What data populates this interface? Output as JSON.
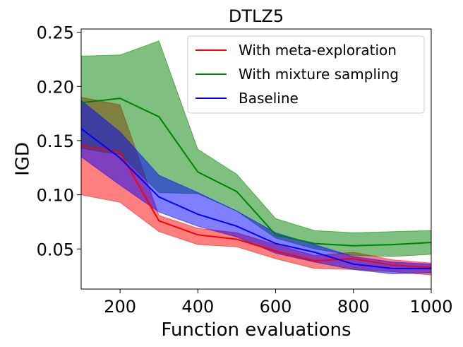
{
  "chart_data": {
    "type": "line",
    "title": "DTLZ5",
    "xlabel": "Function evaluations",
    "ylabel": "IGD",
    "xlim": [
      100,
      1000
    ],
    "ylim": [
      0.013,
      0.253
    ],
    "grid": false,
    "legend_position": "top-right",
    "xticks": [
      200,
      400,
      600,
      800,
      1000
    ],
    "xtick_labels": [
      "200",
      "400",
      "600",
      "800",
      "1000"
    ],
    "yticks": [
      0.05,
      0.1,
      0.15,
      0.2,
      0.25
    ],
    "ytick_labels": [
      "0.05",
      "0.10",
      "0.15",
      "0.20",
      "0.25"
    ],
    "x": [
      100,
      200,
      300,
      400,
      500,
      600,
      700,
      800,
      900,
      1000
    ],
    "series": [
      {
        "name": "With meta-exploration",
        "color": "#ff0000",
        "values": [
          0.145,
          0.139,
          0.076,
          0.063,
          0.059,
          0.048,
          0.039,
          0.041,
          0.035,
          0.033
        ],
        "lower": [
          0.1,
          0.093,
          0.066,
          0.054,
          0.052,
          0.041,
          0.032,
          0.031,
          0.029,
          0.026
        ],
        "upper": [
          0.19,
          0.183,
          0.081,
          0.069,
          0.065,
          0.054,
          0.044,
          0.047,
          0.04,
          0.037
        ]
      },
      {
        "name": "With mixture sampling",
        "color": "#008000",
        "values": [
          0.185,
          0.189,
          0.172,
          0.121,
          0.103,
          0.063,
          0.055,
          0.053,
          0.054,
          0.056
        ],
        "lower": [
          0.143,
          0.137,
          0.102,
          0.101,
          0.085,
          0.06,
          0.05,
          0.044,
          0.043,
          0.045
        ],
        "upper": [
          0.228,
          0.229,
          0.242,
          0.142,
          0.119,
          0.078,
          0.067,
          0.065,
          0.066,
          0.067
        ]
      },
      {
        "name": "Baseline",
        "color": "#0000ff",
        "values": [
          0.161,
          0.134,
          0.098,
          0.082,
          0.071,
          0.055,
          0.047,
          0.036,
          0.032,
          0.032
        ],
        "lower": [
          0.135,
          0.109,
          0.084,
          0.071,
          0.061,
          0.046,
          0.038,
          0.031,
          0.027,
          0.028
        ],
        "upper": [
          0.187,
          0.158,
          0.118,
          0.102,
          0.085,
          0.065,
          0.054,
          0.043,
          0.038,
          0.036
        ]
      }
    ]
  }
}
